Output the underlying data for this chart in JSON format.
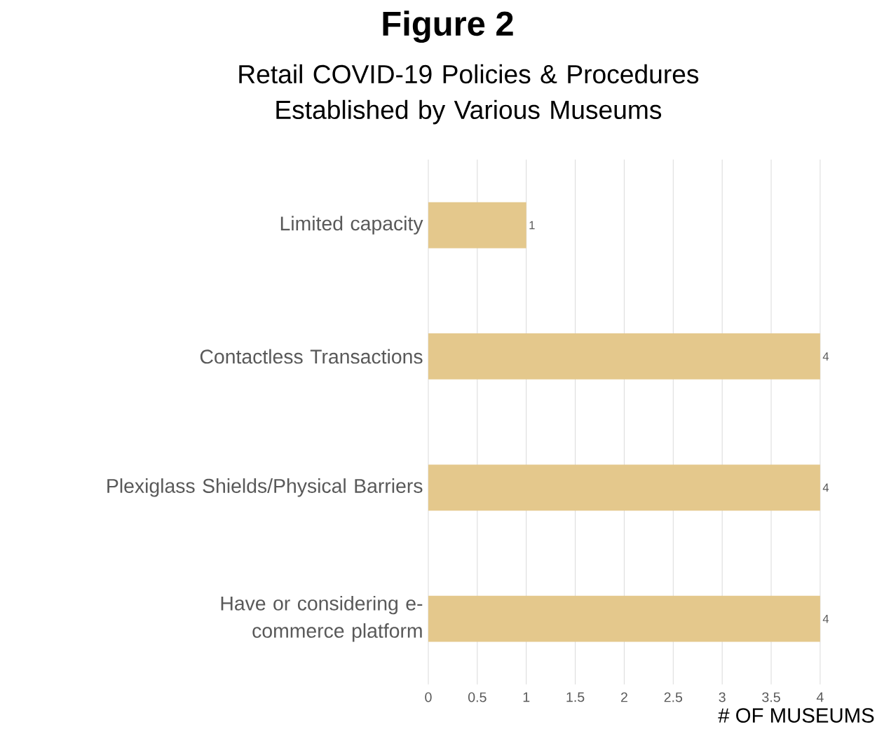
{
  "chart_data": {
    "type": "bar",
    "orientation": "horizontal",
    "title": "Figure 2",
    "subtitle": "Retail COVID-19 Policies & Procedures Established by Various Museums",
    "xlabel": "# OF MUSEUMS",
    "categories": [
      "Limited capacity",
      "Contactless Transactions",
      "Plexiglass Shields/Physical Barriers",
      "Have or considering e-commerce platform"
    ],
    "values": [
      1,
      4,
      4,
      4
    ],
    "color": "#e4c88c",
    "data_labels": true,
    "xlim": [
      0,
      4
    ],
    "xticks": [
      0,
      0.5,
      1,
      1.5,
      2,
      2.5,
      3,
      3.5,
      4
    ],
    "grid": "x"
  }
}
